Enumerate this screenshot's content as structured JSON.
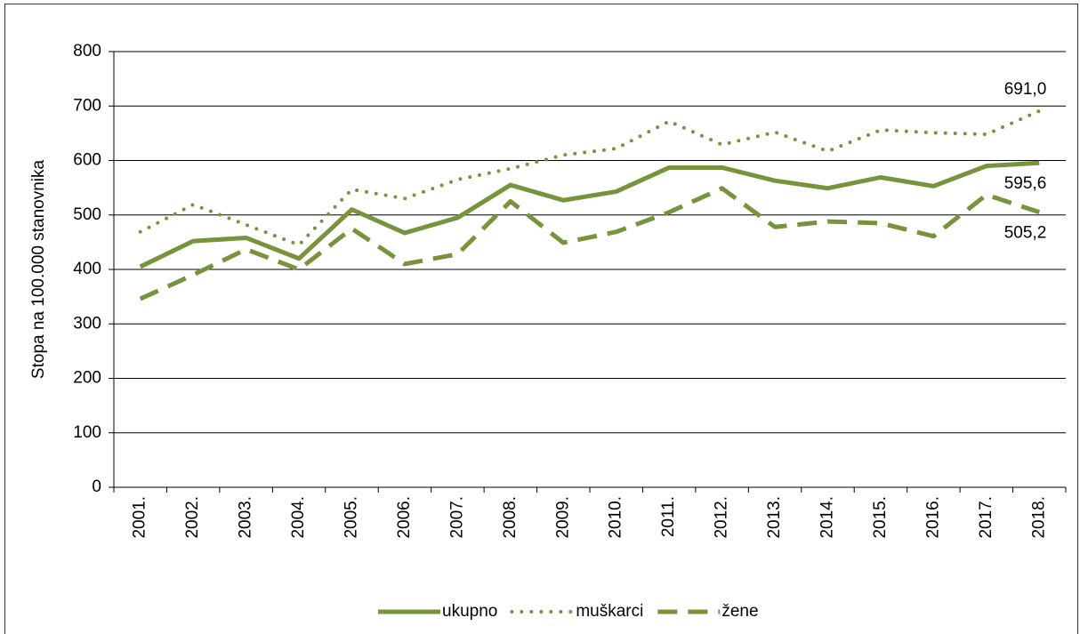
{
  "chart_data": {
    "type": "line",
    "y_label": "Stopa na 100.000 stanovnika",
    "categories": [
      "2001.",
      "2002.",
      "2003.",
      "2004.",
      "2005.",
      "2006.",
      "2007.",
      "2008.",
      "2009.",
      "2010.",
      "2011.",
      "2012.",
      "2013.",
      "2014.",
      "2015.",
      "2016.",
      "2017.",
      "2018."
    ],
    "series": [
      {
        "name": "ukupno",
        "color": "#77933c",
        "style": "solid",
        "values": [
          405,
          452,
          458,
          420,
          510,
          467,
          495,
          555,
          527,
          543,
          587,
          587,
          563,
          549,
          569,
          553,
          590,
          595.6
        ],
        "value_labels": [
          null,
          null,
          null,
          null,
          null,
          null,
          null,
          null,
          null,
          null,
          null,
          null,
          null,
          null,
          null,
          null,
          null,
          "595,6"
        ]
      },
      {
        "name": "muškarci",
        "color": "#77933c",
        "style": "dotted",
        "values": [
          469,
          519,
          482,
          445,
          547,
          530,
          565,
          585,
          610,
          622,
          672,
          629,
          652,
          617,
          656,
          651,
          648,
          691.0
        ],
        "value_labels": [
          null,
          null,
          null,
          null,
          null,
          null,
          null,
          null,
          null,
          null,
          null,
          null,
          null,
          null,
          null,
          null,
          null,
          "691,0"
        ]
      },
      {
        "name": "žene",
        "color": "#77933c",
        "style": "dashed",
        "values": [
          346,
          390,
          437,
          400,
          475,
          410,
          428,
          525,
          449,
          469,
          505,
          549,
          478,
          488,
          485,
          461,
          537,
          505.2
        ],
        "value_labels": [
          null,
          null,
          null,
          null,
          null,
          null,
          null,
          null,
          null,
          null,
          null,
          null,
          null,
          null,
          null,
          null,
          null,
          "505,2"
        ]
      }
    ],
    "ylim": [
      0,
      800
    ],
    "yticks": [
      0,
      100,
      200,
      300,
      400,
      500,
      600,
      700,
      800
    ],
    "grid": true,
    "legend": "bottom"
  }
}
